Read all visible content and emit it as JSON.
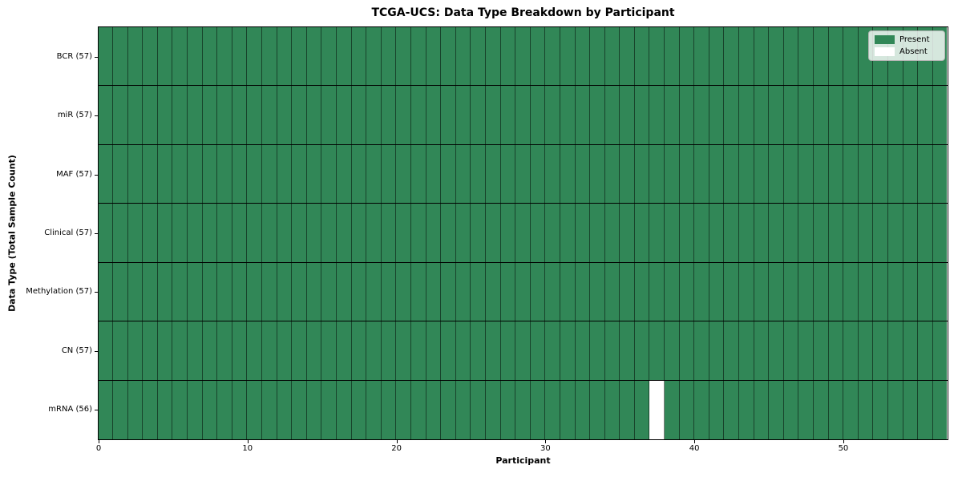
{
  "chart_data": {
    "type": "heatmap",
    "title": "TCGA-UCS: Data Type Breakdown by Participant",
    "xlabel": "Participant",
    "ylabel": "Data Type (Total Sample Count)",
    "n_participants": 57,
    "x_range": [
      0,
      57
    ],
    "x_ticks": [
      0,
      10,
      20,
      30,
      40,
      50
    ],
    "grid": true,
    "legend_position": "upper right",
    "rows": [
      {
        "label": "BCR (57)",
        "data_type": "BCR",
        "total_samples": 57,
        "absent_participants": []
      },
      {
        "label": "miR (57)",
        "data_type": "miR",
        "total_samples": 57,
        "absent_participants": []
      },
      {
        "label": "MAF (57)",
        "data_type": "MAF",
        "total_samples": 57,
        "absent_participants": []
      },
      {
        "label": "Clinical (57)",
        "data_type": "Clinical",
        "total_samples": 57,
        "absent_participants": []
      },
      {
        "label": "Methylation (57)",
        "data_type": "Methylation",
        "total_samples": 57,
        "absent_participants": []
      },
      {
        "label": "CN (57)",
        "data_type": "CN",
        "total_samples": 57,
        "absent_participants": []
      },
      {
        "label": "mRNA (56)",
        "data_type": "mRNA",
        "total_samples": 56,
        "absent_participants": [
          37
        ]
      }
    ],
    "legend": [
      {
        "label": "Present",
        "color": "#318757"
      },
      {
        "label": "Absent",
        "color": "#ffffff"
      }
    ],
    "colors": {
      "present": "#318757",
      "absent": "#ffffff",
      "cell_edge": "rgba(0,0,0,0.5)",
      "row_separator": "#000000",
      "plot_border": "#000000"
    }
  }
}
